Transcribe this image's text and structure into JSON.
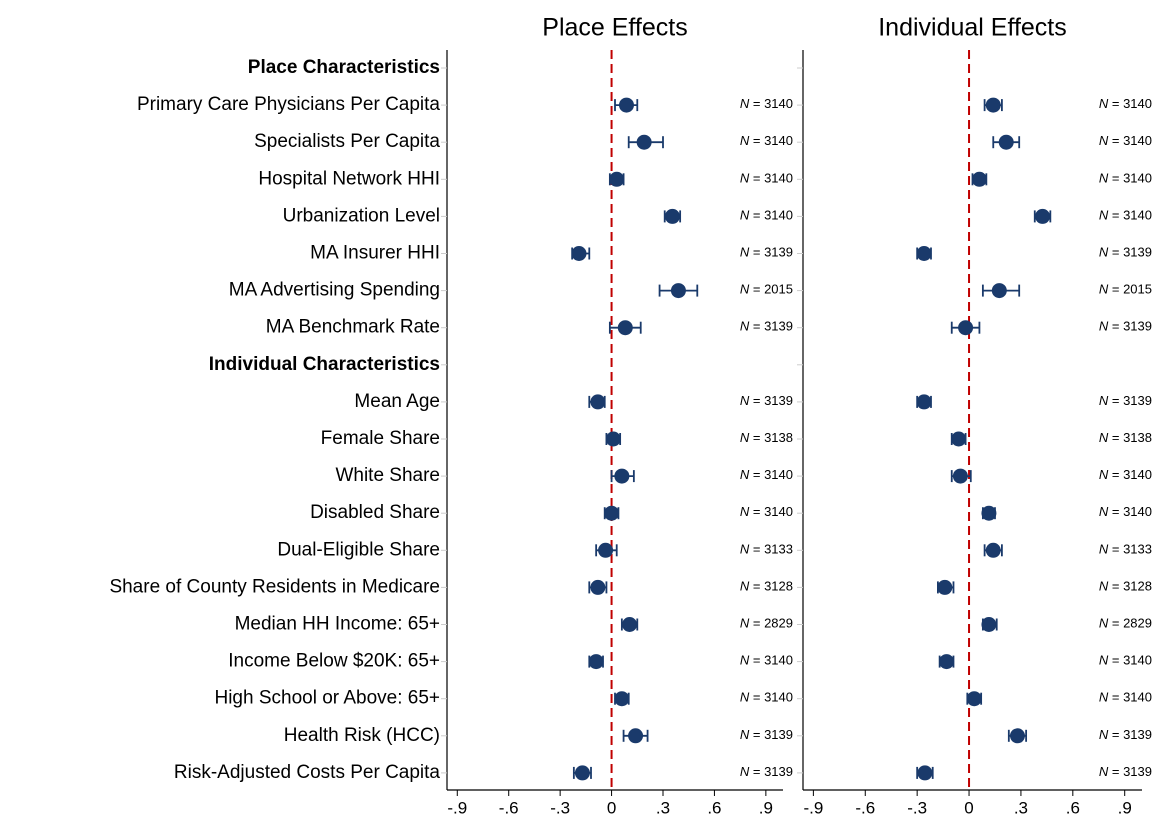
{
  "chart_data": {
    "type": "coefplot",
    "groups": [
      {
        "name": "Place Characteristics",
        "categories": [
          "Primary Care Physicians Per Capita",
          "Specialists Per Capita",
          "Hospital Network HHI",
          "Urbanization Level",
          "MA Insurer HHI",
          "MA Advertising Spending",
          "MA Benchmark Rate"
        ]
      },
      {
        "name": "Individual Characteristics",
        "categories": [
          "Mean Age",
          "Female Share",
          "White Share",
          "Disabled Share",
          "Dual-Eligible Share",
          "Share of County Residents in Medicare",
          "Median HH Income: 65+",
          "Income Below $20K: 65+",
          "High School or Above: 65+",
          "Health Risk (HCC)",
          "Risk-Adjusted Costs Per Capita"
        ]
      }
    ],
    "n_symbol": "N",
    "n_equals": "=",
    "panels": [
      {
        "title": "Place Effects",
        "color": "#1a3a6b",
        "values": [
          0.087,
          0.19,
          0.03,
          0.355,
          -0.19,
          0.39,
          0.08,
          -0.08,
          0.01,
          0.06,
          0.0,
          -0.035,
          -0.08,
          0.105,
          -0.09,
          0.06,
          0.14,
          -0.17
        ],
        "ci_low": [
          0.02,
          0.1,
          -0.01,
          0.31,
          -0.23,
          0.28,
          -0.01,
          -0.13,
          -0.03,
          0.0,
          -0.04,
          -0.09,
          -0.13,
          0.06,
          -0.13,
          0.02,
          0.07,
          -0.22
        ],
        "ci_high": [
          0.15,
          0.3,
          0.07,
          0.4,
          -0.13,
          0.5,
          0.17,
          -0.04,
          0.05,
          0.13,
          0.04,
          0.03,
          -0.03,
          0.15,
          -0.05,
          0.1,
          0.21,
          -0.12
        ],
        "n": [
          3140,
          3140,
          3140,
          3140,
          3139,
          2015,
          3139,
          3139,
          3138,
          3140,
          3140,
          3133,
          3128,
          2829,
          3140,
          3140,
          3139,
          3139
        ]
      },
      {
        "title": "Individual Effects",
        "color": "#1a3a6b",
        "values": [
          0.14,
          0.215,
          0.06,
          0.425,
          -0.26,
          0.175,
          -0.02,
          -0.26,
          -0.06,
          -0.05,
          0.115,
          0.14,
          -0.14,
          0.115,
          -0.13,
          0.03,
          0.28,
          -0.255
        ],
        "ci_low": [
          0.09,
          0.14,
          0.02,
          0.38,
          -0.3,
          0.08,
          -0.1,
          -0.3,
          -0.1,
          -0.1,
          0.08,
          0.09,
          -0.18,
          0.08,
          -0.17,
          -0.01,
          0.23,
          -0.3
        ],
        "ci_high": [
          0.19,
          0.29,
          0.1,
          0.47,
          -0.22,
          0.29,
          0.06,
          -0.22,
          -0.02,
          0.01,
          0.15,
          0.19,
          -0.09,
          0.16,
          -0.09,
          0.07,
          0.33,
          -0.21
        ],
        "n": [
          3140,
          3140,
          3140,
          3140,
          3139,
          2015,
          3139,
          3139,
          3138,
          3140,
          3140,
          3133,
          3128,
          2829,
          3140,
          3140,
          3139,
          3139
        ]
      }
    ],
    "xlim": [
      -0.96,
      1.0
    ],
    "xticks": [
      {
        "value": -0.9,
        "label": "-.9"
      },
      {
        "value": -0.6,
        "label": "-.6"
      },
      {
        "value": -0.3,
        "label": "-.3"
      },
      0,
      {
        "value": 0.3,
        "label": ".3"
      },
      {
        "value": 0.6,
        "label": ".6"
      },
      {
        "value": 0.9,
        "label": ".9"
      }
    ],
    "reference_line": {
      "value": 0,
      "color": "#c00000"
    }
  }
}
